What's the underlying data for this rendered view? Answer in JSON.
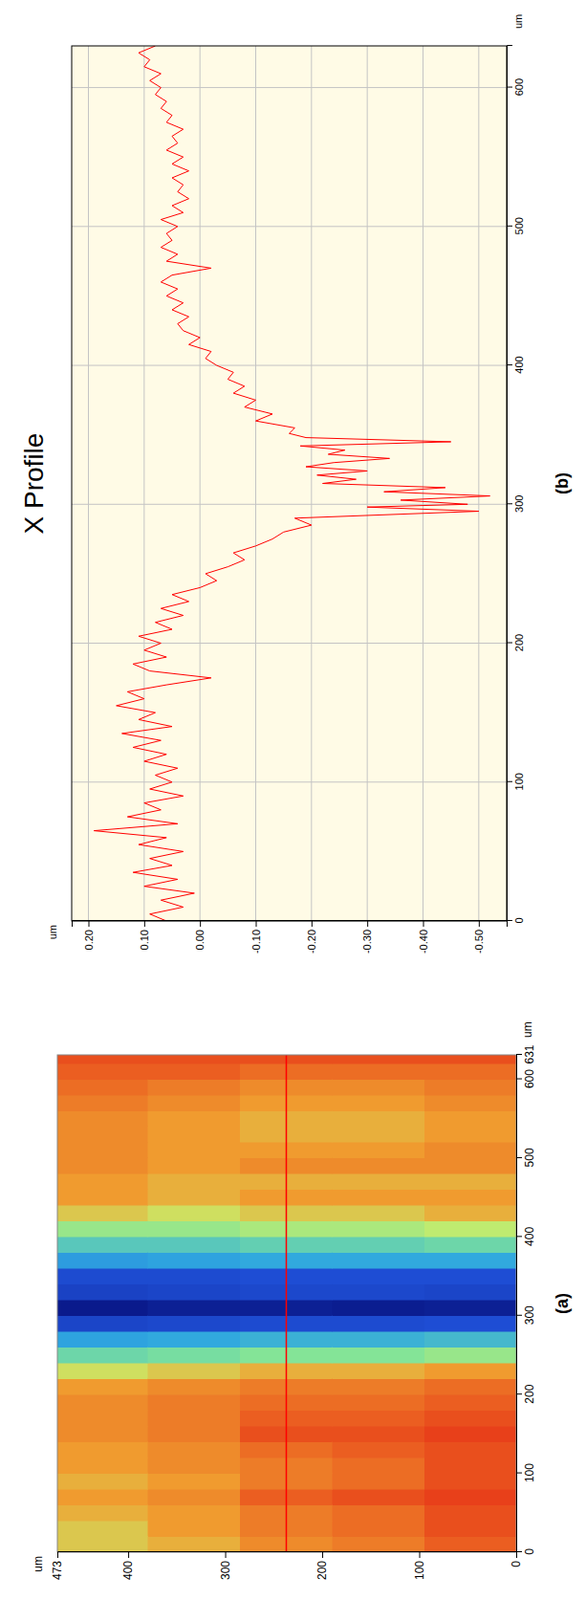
{
  "chart_data": [
    {
      "type": "heatmap",
      "label": "(a)",
      "x_label": "um",
      "y_label": "um",
      "xlim": [
        0,
        631
      ],
      "ylim": [
        0,
        473
      ],
      "xticks": [
        0,
        100,
        200,
        300,
        400,
        500,
        600,
        631
      ],
      "yticks": [
        0,
        100,
        200,
        300,
        400,
        473
      ],
      "x_bins": [
        0,
        20,
        40,
        60,
        80,
        100,
        120,
        140,
        160,
        180,
        200,
        220,
        240,
        260,
        280,
        300,
        320,
        340,
        360,
        380,
        400,
        420,
        440,
        460,
        480,
        500,
        520,
        540,
        560,
        580,
        600,
        620,
        631
      ],
      "y_bins": [
        0,
        95,
        190,
        285,
        380,
        473
      ],
      "cells": [
        [
          0.09,
          0.1,
          0.1,
          0.11,
          0.1,
          0.1,
          0.1,
          0.11,
          0.1,
          0.09,
          0.08,
          0.05,
          -0.01,
          -0.08,
          -0.24,
          -0.4,
          -0.27,
          -0.24,
          -0.1,
          -0.04,
          0.01,
          0.04,
          0.05,
          0.04,
          0.06,
          0.06,
          0.05,
          0.05,
          0.06,
          0.07,
          0.08,
          0.1
        ],
        [
          0.07,
          0.08,
          0.08,
          0.1,
          0.08,
          0.08,
          0.09,
          0.1,
          0.09,
          0.08,
          0.07,
          0.04,
          -0.02,
          -0.09,
          -0.25,
          -0.41,
          -0.26,
          -0.24,
          -0.1,
          -0.05,
          0.0,
          0.03,
          0.05,
          0.04,
          0.06,
          0.05,
          0.04,
          0.04,
          0.05,
          0.06,
          0.08,
          0.1
        ],
        [
          0.06,
          0.07,
          0.07,
          0.09,
          0.07,
          0.07,
          0.08,
          0.1,
          0.09,
          0.08,
          0.07,
          0.04,
          -0.02,
          -0.09,
          -0.25,
          -0.4,
          -0.26,
          -0.24,
          -0.1,
          -0.05,
          0.0,
          0.03,
          0.05,
          0.04,
          0.06,
          0.05,
          0.04,
          0.04,
          0.05,
          0.06,
          0.08,
          0.1
        ],
        [
          0.04,
          0.05,
          0.05,
          0.06,
          0.05,
          0.06,
          0.06,
          0.07,
          0.07,
          0.07,
          0.06,
          0.03,
          -0.03,
          -0.1,
          -0.26,
          -0.4,
          -0.27,
          -0.25,
          -0.11,
          -0.06,
          -0.01,
          0.02,
          0.04,
          0.04,
          0.05,
          0.05,
          0.05,
          0.05,
          0.06,
          0.07,
          0.09,
          0.1
        ],
        [
          0.03,
          0.03,
          0.04,
          0.05,
          0.04,
          0.05,
          0.05,
          0.06,
          0.06,
          0.06,
          0.05,
          0.02,
          -0.04,
          -0.11,
          -0.27,
          -0.42,
          -0.28,
          -0.25,
          -0.12,
          -0.06,
          -0.01,
          0.03,
          0.05,
          0.05,
          0.06,
          0.06,
          0.06,
          0.06,
          0.07,
          0.08,
          0.09,
          0.1
        ]
      ],
      "profile_y": 237
    },
    {
      "type": "line",
      "title": "X Profile",
      "label": "(b)",
      "x_label": "um",
      "y_label": "um",
      "xlim": [
        0,
        630
      ],
      "ylim": [
        -0.55,
        0.23
      ],
      "xticks": [
        0,
        100,
        200,
        300,
        400,
        500,
        600
      ],
      "yticks": [
        {
          "value": 0.2,
          "label": "0.20"
        },
        {
          "value": 0.1,
          "label": "0.10"
        },
        {
          "value": 0,
          "label": "0.00"
        },
        {
          "value": -0.1,
          "label": "-0.10"
        },
        {
          "value": -0.2,
          "label": "-0.20"
        },
        {
          "value": -0.3,
          "label": "-0.30"
        },
        {
          "value": -0.4,
          "label": "-0.40"
        },
        {
          "value": -0.5,
          "label": "-0.50"
        }
      ],
      "grid": true,
      "color": "#ff0000",
      "x": [
        0,
        5,
        10,
        15,
        20,
        25,
        30,
        35,
        40,
        45,
        50,
        55,
        60,
        65,
        70,
        75,
        80,
        85,
        90,
        95,
        100,
        105,
        110,
        115,
        120,
        125,
        130,
        135,
        140,
        145,
        150,
        155,
        160,
        165,
        170,
        175,
        180,
        185,
        190,
        195,
        200,
        205,
        210,
        215,
        220,
        225,
        230,
        235,
        240,
        245,
        250,
        255,
        260,
        265,
        270,
        275,
        280,
        285,
        290,
        295,
        298,
        300,
        303,
        306,
        309,
        312,
        315,
        318,
        321,
        324,
        327,
        330,
        333,
        336,
        339,
        342,
        345,
        348,
        351,
        355,
        360,
        365,
        370,
        375,
        380,
        385,
        390,
        395,
        400,
        405,
        410,
        415,
        420,
        425,
        430,
        435,
        440,
        445,
        450,
        455,
        460,
        465,
        470,
        475,
        480,
        485,
        490,
        495,
        500,
        505,
        510,
        515,
        520,
        525,
        530,
        535,
        540,
        545,
        550,
        555,
        560,
        565,
        570,
        575,
        580,
        585,
        590,
        595,
        600,
        605,
        610,
        615,
        620,
        625,
        630
      ],
      "values": [
        0.06,
        0.09,
        0.03,
        0.07,
        0.01,
        0.1,
        0.04,
        0.12,
        0.05,
        0.09,
        0.03,
        0.11,
        0.06,
        0.19,
        0.04,
        0.13,
        0.07,
        0.1,
        0.03,
        0.09,
        0.05,
        0.08,
        0.04,
        0.1,
        0.06,
        0.12,
        0.07,
        0.14,
        0.05,
        0.11,
        0.08,
        0.15,
        0.1,
        0.13,
        0.06,
        -0.02,
        0.09,
        0.12,
        0.06,
        0.1,
        0.07,
        0.11,
        0.05,
        0.08,
        0.03,
        0.07,
        0.02,
        0.05,
        0.0,
        -0.03,
        -0.01,
        -0.05,
        -0.08,
        -0.06,
        -0.1,
        -0.13,
        -0.15,
        -0.2,
        -0.17,
        -0.5,
        -0.3,
        -0.48,
        -0.36,
        -0.52,
        -0.33,
        -0.44,
        -0.22,
        -0.28,
        -0.21,
        -0.3,
        -0.19,
        -0.24,
        -0.34,
        -0.23,
        -0.26,
        -0.18,
        -0.45,
        -0.19,
        -0.16,
        -0.17,
        -0.1,
        -0.13,
        -0.08,
        -0.1,
        -0.06,
        -0.08,
        -0.05,
        -0.06,
        -0.03,
        -0.01,
        -0.02,
        0.02,
        0.0,
        0.03,
        0.04,
        0.02,
        0.05,
        0.03,
        0.06,
        0.04,
        0.07,
        0.05,
        -0.02,
        0.06,
        0.04,
        0.07,
        0.05,
        0.06,
        0.04,
        0.07,
        0.03,
        0.05,
        0.02,
        0.04,
        0.03,
        0.05,
        0.02,
        0.05,
        0.03,
        0.06,
        0.04,
        0.05,
        0.03,
        0.06,
        0.05,
        0.07,
        0.06,
        0.08,
        0.07,
        0.09,
        0.07,
        0.1,
        0.09,
        0.11,
        0.08
      ]
    }
  ]
}
